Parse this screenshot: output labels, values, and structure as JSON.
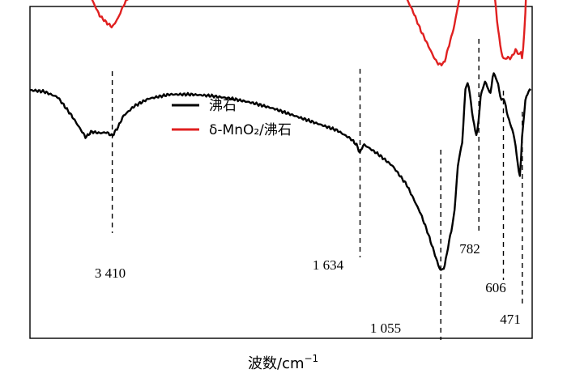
{
  "chart_data": {
    "type": "line",
    "title": "",
    "xlabel": "波数/cm",
    "xlabel_superscript": "−1",
    "ylabel": "",
    "x_direction": "decreasing",
    "xlim": [
      4000,
      400
    ],
    "grid": false,
    "legend_position": "center",
    "series": [
      {
        "name": "沸石",
        "color": "#000000",
        "x": [
          4000,
          3900,
          3800,
          3700,
          3600,
          3560,
          3500,
          3450,
          3410,
          3370,
          3330,
          3250,
          3150,
          3000,
          2850,
          2700,
          2550,
          2400,
          2250,
          2100,
          1950,
          1800,
          1700,
          1660,
          1634,
          1610,
          1590,
          1560,
          1500,
          1400,
          1300,
          1200,
          1150,
          1100,
          1070,
          1055,
          1030,
          1000,
          960,
          930,
          900,
          880,
          860,
          840,
          820,
          800,
          790,
          782,
          770,
          750,
          735,
          720,
          700,
          690,
          680,
          660,
          640,
          620,
          606,
          595,
          580,
          560,
          540,
          520,
          500,
          490,
          480,
          471,
          460,
          450,
          430,
          410
        ],
        "y": [
          0.58,
          0.57,
          0.53,
          0.4,
          0.25,
          0.29,
          0.28,
          0.285,
          0.26,
          0.32,
          0.4,
          0.47,
          0.52,
          0.55,
          0.55,
          0.54,
          0.52,
          0.49,
          0.45,
          0.4,
          0.35,
          0.3,
          0.24,
          0.2,
          0.14,
          0.2,
          0.19,
          0.17,
          0.13,
          0.05,
          -0.08,
          -0.28,
          -0.41,
          -0.56,
          -0.65,
          -0.68,
          -0.66,
          -0.5,
          -0.3,
          0.08,
          0.22,
          0.58,
          0.64,
          0.5,
          0.35,
          0.27,
          0.3,
          0.4,
          0.53,
          0.61,
          0.64,
          0.6,
          0.55,
          0.62,
          0.7,
          0.67,
          0.6,
          0.5,
          0.53,
          0.49,
          0.42,
          0.35,
          0.3,
          0.2,
          0.04,
          -0.04,
          0.1,
          0.27,
          0.39,
          0.5,
          0.57,
          0.58
        ]
      },
      {
        "name": "δ-MnO₂/沸石",
        "color": "#e02020",
        "x": [
          4000,
          3900,
          3800,
          3700,
          3600,
          3550,
          3500,
          3450,
          3410,
          3370,
          3330,
          3250,
          3150,
          3000,
          2850,
          2700,
          2550,
          2400,
          2250,
          2100,
          1950,
          1850,
          1750,
          1700,
          1670,
          1650,
          1634,
          1615,
          1600,
          1570,
          1540,
          1500,
          1450,
          1400,
          1350,
          1300,
          1250,
          1200,
          1150,
          1100,
          1070,
          1055,
          1030,
          1000,
          960,
          930,
          900,
          880,
          860,
          840,
          820,
          800,
          782,
          770,
          750,
          735,
          720,
          705,
          690,
          670,
          650,
          630,
          615,
          606,
          595,
          585,
          575,
          560,
          540,
          520,
          500,
          490,
          480,
          471,
          460,
          450,
          440,
          430,
          420,
          410
        ],
        "y": [
          1.56,
          1.56,
          1.55,
          1.5,
          1.32,
          1.2,
          1.1,
          1.05,
          1.02,
          1.08,
          1.17,
          1.3,
          1.42,
          1.51,
          1.55,
          1.575,
          1.58,
          1.58,
          1.58,
          1.575,
          1.575,
          1.57,
          1.555,
          1.5,
          1.43,
          1.36,
          1.3,
          1.42,
          1.48,
          1.43,
          1.45,
          1.47,
          1.44,
          1.38,
          1.3,
          1.22,
          1.12,
          1.0,
          0.9,
          0.8,
          0.76,
          0.76,
          0.77,
          0.88,
          1.02,
          1.18,
          1.32,
          1.54,
          1.62,
          1.58,
          1.5,
          1.43,
          1.37,
          1.4,
          1.41,
          1.37,
          1.38,
          1.37,
          1.38,
          1.25,
          1.05,
          0.9,
          0.82,
          0.8,
          0.8,
          0.8,
          0.81,
          0.8,
          0.82,
          0.86,
          0.84,
          0.82,
          0.85,
          0.8,
          0.92,
          1.1,
          1.35,
          1.55,
          1.68,
          1.7
        ]
      }
    ],
    "annotations": [
      {
        "wavenumber": 3410,
        "label": "3 410"
      },
      {
        "wavenumber": 1634,
        "label": "1 634"
      },
      {
        "wavenumber": 1055,
        "label": "1 055"
      },
      {
        "wavenumber": 782,
        "label": "782"
      },
      {
        "wavenumber": 606,
        "label": "606"
      },
      {
        "wavenumber": 471,
        "label": "471"
      }
    ]
  }
}
